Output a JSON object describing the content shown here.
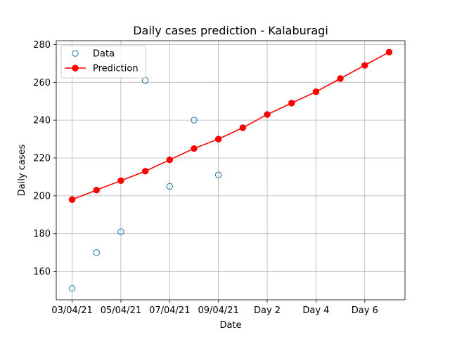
{
  "chart_data": {
    "type": "scatter",
    "title": "Daily cases prediction - Kalaburagi",
    "xlabel": "Date",
    "ylabel": "Daily cases",
    "x_tick_labels": [
      "03/04/21",
      "05/04/21",
      "07/04/21",
      "09/04/21",
      "Day 2",
      "Day 4",
      "Day 6"
    ],
    "x_tick_positions": [
      0,
      2,
      4,
      6,
      8,
      10,
      12
    ],
    "y_ticks": [
      160,
      180,
      200,
      220,
      240,
      260,
      280
    ],
    "ylim": [
      145,
      282
    ],
    "xlim": [
      -0.65,
      13.65
    ],
    "grid": true,
    "legend_position": "upper left",
    "series": [
      {
        "name": "Data",
        "style": "hollow-markers",
        "color": "#1f77b4",
        "x": [
          0,
          1,
          2,
          3,
          4,
          5,
          6
        ],
        "y": [
          151,
          170,
          181,
          261,
          205,
          240,
          211
        ]
      },
      {
        "name": "Prediction",
        "style": "line-markers",
        "color": "#ff0000",
        "x": [
          0,
          1,
          2,
          3,
          4,
          5,
          6,
          7,
          8,
          9,
          10,
          11,
          12,
          13
        ],
        "y": [
          198,
          203,
          208,
          213,
          219,
          225,
          230,
          236,
          243,
          249,
          255,
          262,
          269,
          276
        ]
      }
    ]
  }
}
